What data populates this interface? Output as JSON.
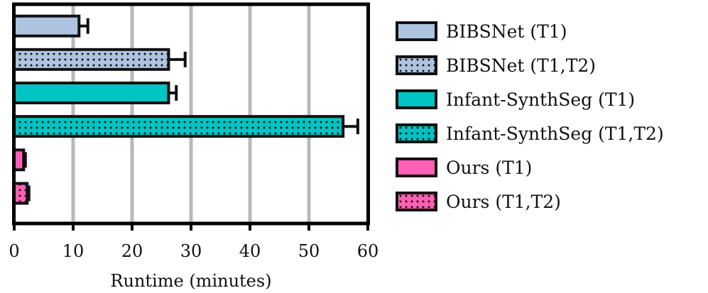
{
  "chart_data": {
    "type": "bar",
    "orientation": "horizontal",
    "xlabel": "Runtime (minutes)",
    "ylabel": "",
    "xlim": [
      0,
      60
    ],
    "xticks": [
      0,
      10,
      20,
      30,
      40,
      50,
      60
    ],
    "grid": "vertical gridlines",
    "legend_position": "right",
    "series": [
      {
        "name": "BIBSNet (T1)",
        "value": 11,
        "error": 1.5,
        "color": "#adc3e0",
        "pattern": "solid"
      },
      {
        "name": "BIBSNet (T1,T2)",
        "value": 26.2,
        "error": 2.8,
        "color": "#adc3e0",
        "pattern": "dotted"
      },
      {
        "name": "Infant-SynthSeg (T1)",
        "value": 26.2,
        "error": 1.3,
        "color": "#00c4c4",
        "pattern": "solid"
      },
      {
        "name": "Infant-SynthSeg (T1,T2)",
        "value": 55.8,
        "error": 2.5,
        "color": "#00c4c4",
        "pattern": "dotted"
      },
      {
        "name": "Ours (T1)",
        "value": 1.6,
        "error": 0.3,
        "color": "#ff5fb3",
        "pattern": "solid"
      },
      {
        "name": "Ours (T1,T2)",
        "value": 2.2,
        "error": 0.3,
        "color": "#ff5fb3",
        "pattern": "dotted"
      }
    ]
  }
}
